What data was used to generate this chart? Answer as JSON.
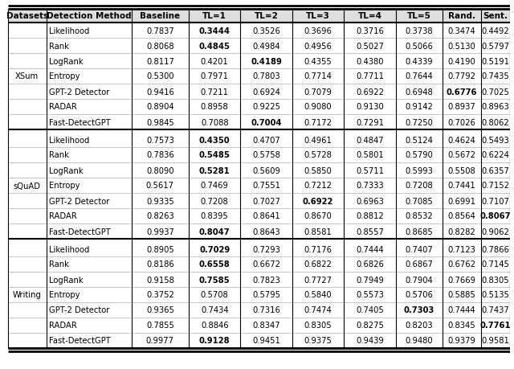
{
  "headers": [
    "Datasets",
    "Detection Method",
    "Baseline",
    "TL=1",
    "TL=2",
    "TL=3",
    "TL=4",
    "TL=5",
    "Rand.",
    "Sent."
  ],
  "sections": [
    {
      "dataset": "XSum",
      "rows": [
        [
          "Likelihood",
          "0.7837",
          "0.3444",
          "0.3526",
          "0.3696",
          "0.3716",
          "0.3738",
          "0.3474",
          "0.4492"
        ],
        [
          "Rank",
          "0.8068",
          "0.4845",
          "0.4984",
          "0.4956",
          "0.5027",
          "0.5066",
          "0.5130",
          "0.5797"
        ],
        [
          "LogRank",
          "0.8117",
          "0.4201",
          "0.4189",
          "0.4355",
          "0.4380",
          "0.4339",
          "0.4190",
          "0.5191"
        ],
        [
          "Entropy",
          "0.5300",
          "0.7971",
          "0.7803",
          "0.7714",
          "0.7711",
          "0.7644",
          "0.7792",
          "0.7435"
        ],
        [
          "GPT-2 Detector",
          "0.9416",
          "0.7211",
          "0.6924",
          "0.7079",
          "0.6922",
          "0.6948",
          "0.6776",
          "0.7025"
        ],
        [
          "RADAR",
          "0.8904",
          "0.8958",
          "0.9225",
          "0.9080",
          "0.9130",
          "0.9142",
          "0.8937",
          "0.8963"
        ],
        [
          "Fast-DetectGPT",
          "0.9845",
          "0.7088",
          "0.7004",
          "0.7172",
          "0.7291",
          "0.7250",
          "0.7026",
          "0.8062"
        ]
      ],
      "bold_col": [
        1,
        1,
        2,
        -1,
        6,
        -1,
        2
      ]
    },
    {
      "dataset": "sQuAD",
      "rows": [
        [
          "Likelihood",
          "0.7573",
          "0.4350",
          "0.4707",
          "0.4961",
          "0.4847",
          "0.5124",
          "0.4624",
          "0.5493"
        ],
        [
          "Rank",
          "0.7836",
          "0.5485",
          "0.5758",
          "0.5728",
          "0.5801",
          "0.5790",
          "0.5672",
          "0.6224"
        ],
        [
          "LogRank",
          "0.8090",
          "0.5281",
          "0.5609",
          "0.5850",
          "0.5711",
          "0.5993",
          "0.5508",
          "0.6357"
        ],
        [
          "Entropy",
          "0.5617",
          "0.7469",
          "0.7551",
          "0.7212",
          "0.7333",
          "0.7208",
          "0.7441",
          "0.7152"
        ],
        [
          "GPT-2 Detector",
          "0.9335",
          "0.7208",
          "0.7027",
          "0.6922",
          "0.6963",
          "0.7085",
          "0.6991",
          "0.7107"
        ],
        [
          "RADAR",
          "0.8263",
          "0.8395",
          "0.8641",
          "0.8670",
          "0.8812",
          "0.8532",
          "0.8564",
          "0.8067"
        ],
        [
          "Fast-DetectGPT",
          "0.9937",
          "0.8047",
          "0.8643",
          "0.8581",
          "0.8557",
          "0.8685",
          "0.8282",
          "0.9062"
        ]
      ],
      "bold_col": [
        1,
        1,
        1,
        -1,
        3,
        7,
        1
      ]
    },
    {
      "dataset": "Writing",
      "rows": [
        [
          "Likelihood",
          "0.8905",
          "0.7029",
          "0.7293",
          "0.7176",
          "0.7444",
          "0.7407",
          "0.7123",
          "0.7866"
        ],
        [
          "Rank",
          "0.8186",
          "0.6558",
          "0.6672",
          "0.6822",
          "0.6826",
          "0.6867",
          "0.6762",
          "0.7145"
        ],
        [
          "LogRank",
          "0.9158",
          "0.7585",
          "0.7823",
          "0.7727",
          "0.7949",
          "0.7904",
          "0.7669",
          "0.8305"
        ],
        [
          "Entropy",
          "0.3752",
          "0.5708",
          "0.5795",
          "0.5840",
          "0.5573",
          "0.5706",
          "0.5885",
          "0.5135"
        ],
        [
          "GPT-2 Detector",
          "0.9365",
          "0.7434",
          "0.7316",
          "0.7474",
          "0.7405",
          "0.7303",
          "0.7444",
          "0.7437"
        ],
        [
          "RADAR",
          "0.7855",
          "0.8846",
          "0.8347",
          "0.8305",
          "0.8275",
          "0.8203",
          "0.8345",
          "0.7761"
        ],
        [
          "Fast-DetectGPT",
          "0.9977",
          "0.9128",
          "0.9451",
          "0.9375",
          "0.9439",
          "0.9480",
          "0.9379",
          "0.9581"
        ]
      ],
      "bold_col": [
        1,
        1,
        1,
        -1,
        5,
        7,
        1
      ]
    }
  ],
  "font_size": 7.2,
  "header_font_size": 7.5
}
